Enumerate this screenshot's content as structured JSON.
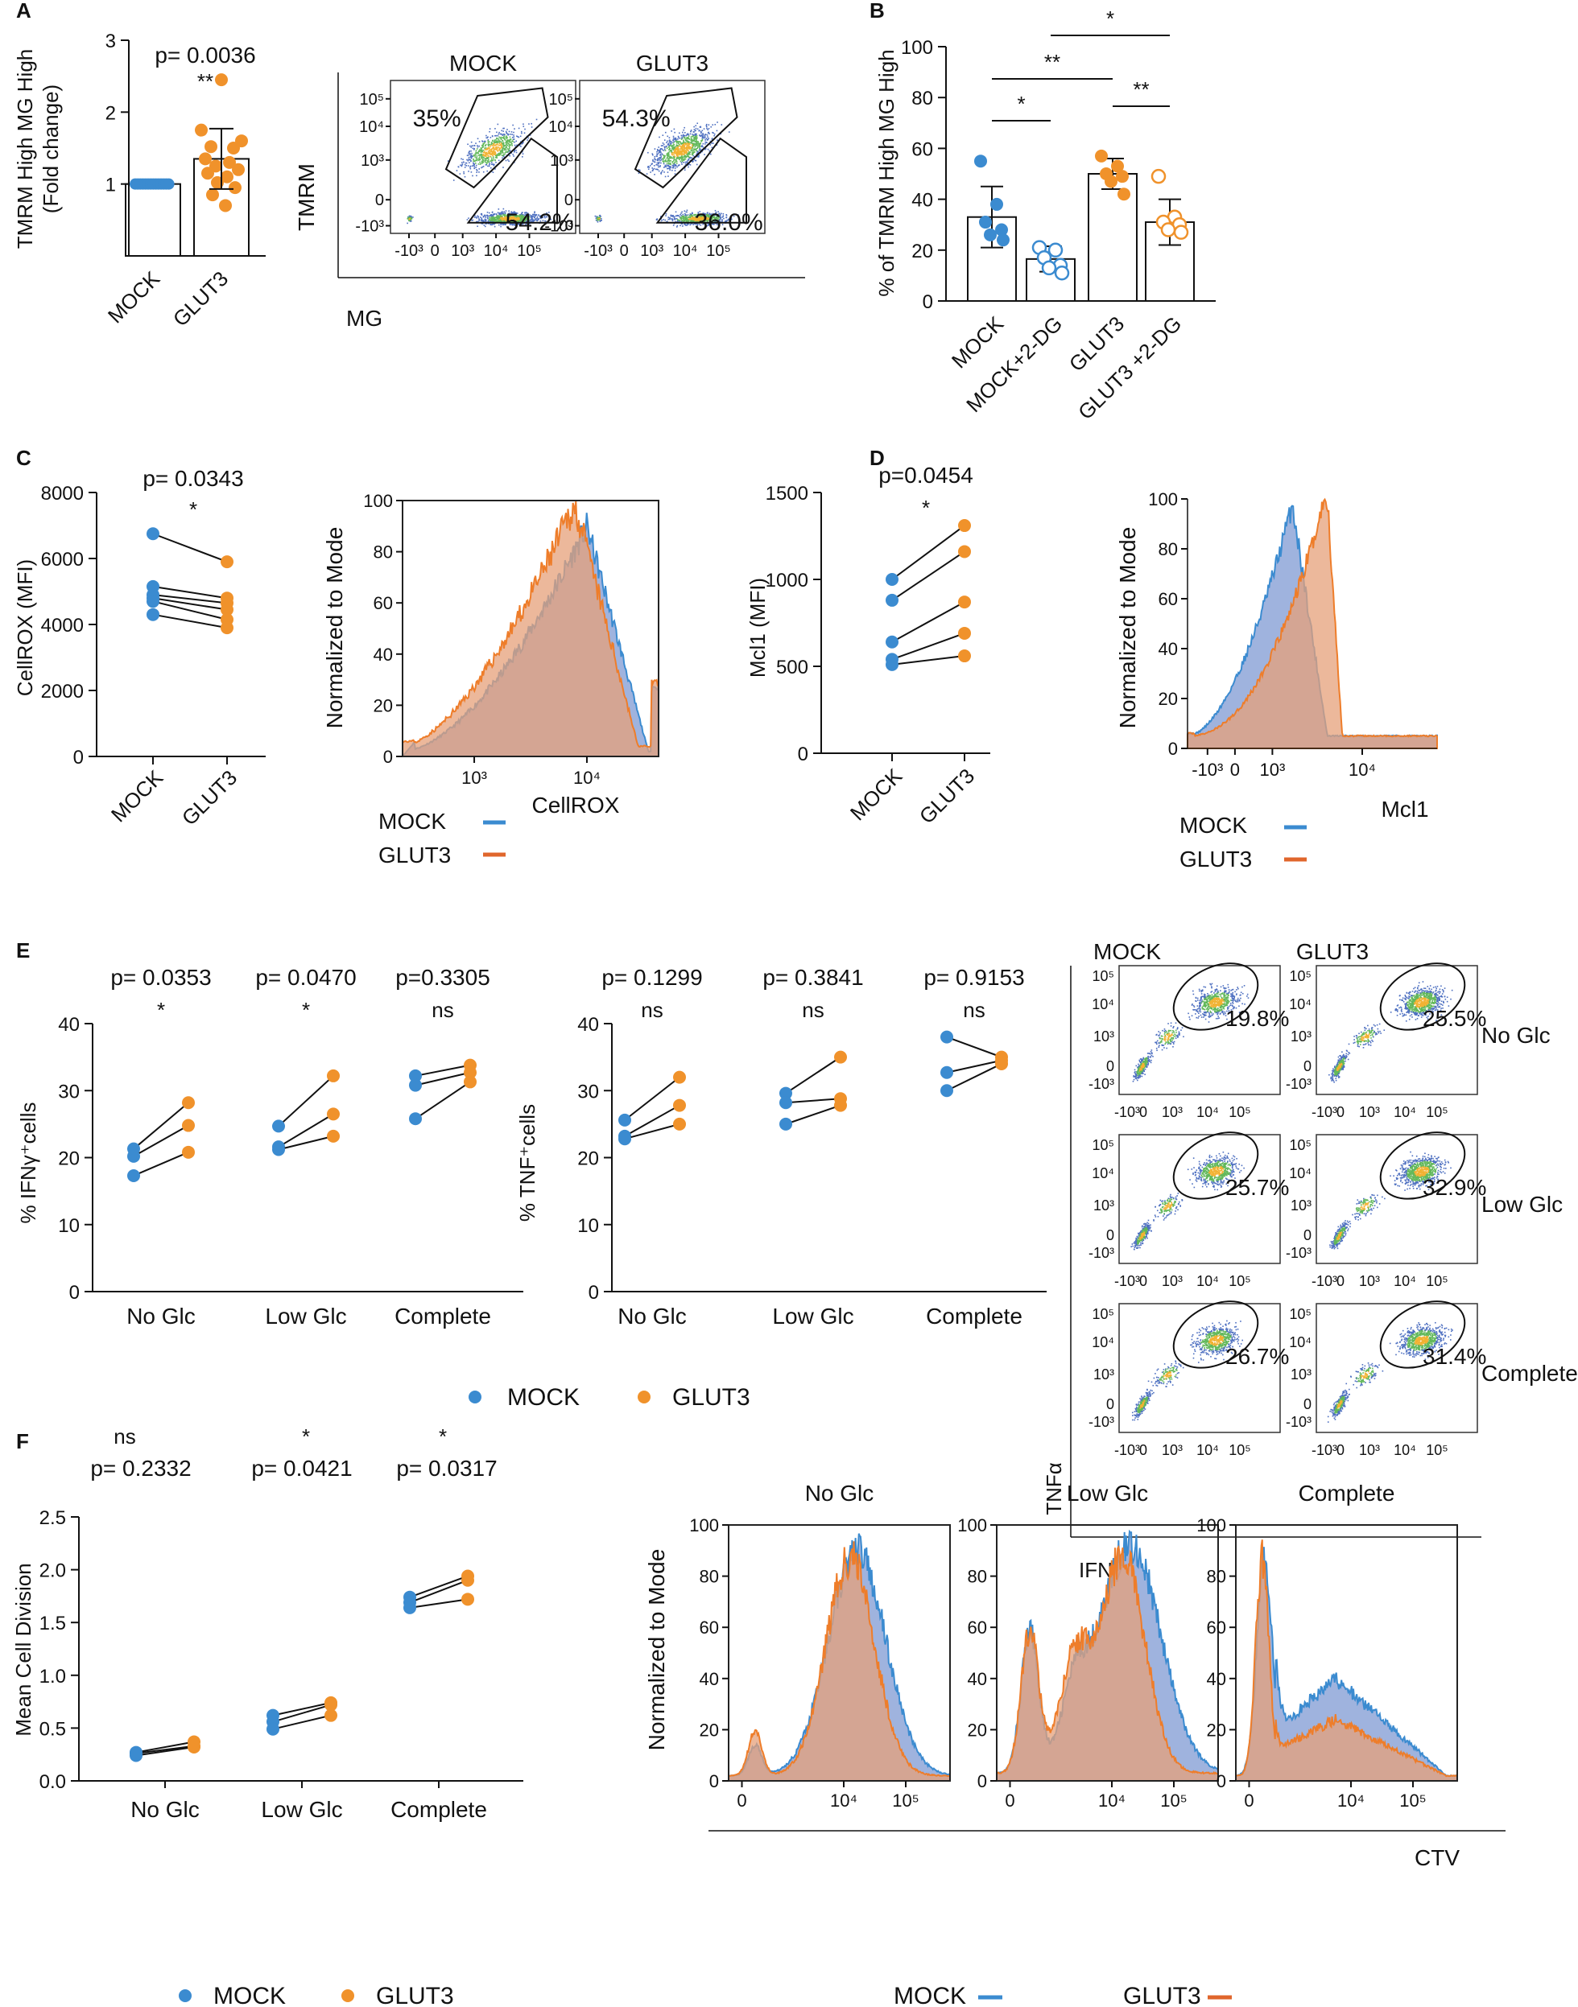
{
  "colors": {
    "mock": "#3b8bd0",
    "glut3": "#f0922b",
    "mock_fill": "#8ea6d8",
    "glut3_fill": "#e6a07a",
    "overlap": "#c19a8a",
    "glut3_legend": "#e0662c"
  },
  "panels": {
    "A": {
      "label": "A"
    },
    "B": {
      "label": "B"
    },
    "C": {
      "label": "C"
    },
    "D": {
      "label": "D"
    },
    "E": {
      "label": "E"
    },
    "F": {
      "label": "F"
    }
  },
  "chart_data": [
    {
      "id": "A-bar",
      "type": "bar",
      "panel": "A",
      "ylabel_lines": [
        "TMRM High MG High",
        "(Fold change)"
      ],
      "categories": [
        "MOCK",
        "GLUT3"
      ],
      "values": [
        1.0,
        1.35
      ],
      "errors": [
        0,
        0.42
      ],
      "ylim": [
        0,
        3
      ],
      "yticks": [
        "1",
        "2",
        "3"
      ],
      "pvalue": "p=  0.0036",
      "sig": "**",
      "points": {
        "MOCK": [
          1,
          1,
          1,
          1,
          1,
          1,
          1,
          1,
          1,
          1,
          1,
          1,
          1,
          1
        ],
        "GLUT3": [
          2.45,
          1.75,
          1.6,
          1.52,
          1.5,
          1.35,
          1.3,
          1.25,
          1.2,
          1.15,
          1.1,
          1.02,
          0.95,
          0.85,
          0.7
        ]
      }
    },
    {
      "id": "A-flow",
      "type": "scatter",
      "panel": "A",
      "ylabel": "TMRM",
      "xlabel": "MG",
      "plots": [
        {
          "title": "MOCK",
          "upper": "35%",
          "lower": "54.2%"
        },
        {
          "title": "GLUT3",
          "upper": "54.3%",
          "lower": "36.0%"
        }
      ],
      "xticks": [
        "-10³",
        "0",
        "10³",
        "10⁴",
        "10⁵"
      ],
      "yticks": [
        "10⁵",
        "10⁴",
        "10³",
        "0",
        "-10³"
      ]
    },
    {
      "id": "B-bar",
      "type": "bar",
      "panel": "B",
      "ylabel": "% of TMRM High MG High",
      "categories": [
        "MOCK",
        "MOCK+2-DG",
        "GLUT3",
        "GLUT3 +2-DG"
      ],
      "values": [
        33,
        16.5,
        50,
        31
      ],
      "errors": [
        12,
        5,
        6,
        9
      ],
      "ylim": [
        0,
        100
      ],
      "yticks": [
        "0",
        "20",
        "40",
        "60",
        "80",
        "100"
      ],
      "points": [
        [
          55,
          38,
          31,
          28,
          26,
          24
        ],
        [
          21,
          20,
          17,
          14,
          13,
          11
        ],
        [
          57,
          53,
          50,
          49,
          47,
          42
        ],
        [
          49,
          33,
          31,
          30,
          28,
          27
        ]
      ],
      "significance": [
        {
          "from": "MOCK",
          "to": "MOCK+2-DG",
          "label": "*"
        },
        {
          "from": "MOCK",
          "to": "GLUT3",
          "label": "**"
        },
        {
          "from": "MOCK+2-DG",
          "to": "GLUT3 +2-DG",
          "label": "*"
        },
        {
          "from": "GLUT3",
          "to": "GLUT3 +2-DG",
          "label": "**"
        }
      ]
    },
    {
      "id": "C-paired",
      "type": "scatter",
      "panel": "C",
      "ylabel": "CellROX  (MFI)",
      "categories": [
        "MOCK",
        "GLUT3"
      ],
      "pairs": [
        [
          6750,
          5900
        ],
        [
          5150,
          4800
        ],
        [
          4900,
          4650
        ],
        [
          4800,
          4450
        ],
        [
          4700,
          4150
        ],
        [
          4300,
          3900
        ]
      ],
      "ylim": [
        0,
        8000
      ],
      "yticks": [
        "0",
        "2000",
        "4000",
        "6000",
        "8000"
      ],
      "pvalue": "p=  0.0343",
      "sig": "*"
    },
    {
      "id": "C-hist",
      "type": "area",
      "panel": "C",
      "ylabel": "Normalized to Mode",
      "xlabel": "CellROX",
      "yticks": [
        "0",
        "20",
        "40",
        "60",
        "80",
        "100"
      ],
      "xticks": [
        "10³",
        "10⁴"
      ],
      "legend": [
        "MOCK",
        "GLUT3"
      ]
    },
    {
      "id": "D-paired",
      "type": "scatter",
      "panel": "D",
      "ylabel": "Mcl1 (MFI)",
      "categories": [
        "MOCK",
        "GLUT3"
      ],
      "pairs": [
        [
          1000,
          1310
        ],
        [
          880,
          1160
        ],
        [
          640,
          870
        ],
        [
          540,
          690
        ],
        [
          510,
          560
        ]
      ],
      "ylim": [
        0,
        1500
      ],
      "yticks": [
        "0",
        "500",
        "1000",
        "1500"
      ],
      "pvalue": "p=0.0454",
      "sig": "*"
    },
    {
      "id": "D-hist",
      "type": "area",
      "panel": "D",
      "ylabel": "Normalized to Mode",
      "xlabel": "Mcl1",
      "yticks": [
        "0",
        "20",
        "40",
        "60",
        "80",
        "100"
      ],
      "xticks": [
        "-10³",
        "0",
        "10³",
        "10⁴"
      ],
      "legend": [
        "MOCK",
        "GLUT3"
      ]
    },
    {
      "id": "E-ifng",
      "type": "scatter",
      "panel": "E",
      "ylabel": "% IFNγ⁺cells",
      "categories": [
        "No Glc",
        "Low Glc",
        "Complete"
      ],
      "pairs": [
        [
          [
            21.3,
            28.2
          ],
          [
            20.2,
            24.8
          ],
          [
            17.3,
            20.8
          ]
        ],
        [
          [
            24.7,
            32.2
          ],
          [
            21.6,
            26.5
          ],
          [
            21.2,
            23.2
          ]
        ],
        [
          [
            32.2,
            33.8
          ],
          [
            30.8,
            32.7
          ],
          [
            25.8,
            31.3
          ]
        ]
      ],
      "ylim": [
        0,
        40
      ],
      "yticks": [
        "0",
        "10",
        "20",
        "30",
        "40"
      ],
      "pvalues": [
        "p= 0.0353",
        "p= 0.0470",
        "p=0.3305"
      ],
      "sigs": [
        "*",
        "*",
        "ns"
      ],
      "legend": [
        "MOCK",
        "GLUT3"
      ]
    },
    {
      "id": "E-tnf",
      "type": "scatter",
      "panel": "E",
      "ylabel": "% TNF⁺cells",
      "categories": [
        "No Glc",
        "Low Glc",
        "Complete"
      ],
      "pairs": [
        [
          [
            25.6,
            32.0
          ],
          [
            23.2,
            27.8
          ],
          [
            22.8,
            25.0
          ]
        ],
        [
          [
            29.6,
            35.0
          ],
          [
            28.2,
            28.8
          ],
          [
            25.0,
            27.8
          ]
        ],
        [
          [
            38.0,
            35.0
          ],
          [
            32.7,
            34.5
          ],
          [
            30.0,
            34.0
          ]
        ]
      ],
      "ylim": [
        0,
        40
      ],
      "yticks": [
        "0",
        "10",
        "20",
        "30",
        "40"
      ],
      "pvalues": [
        "p= 0.1299",
        "p= 0.3841",
        "p= 0.9153"
      ],
      "sigs": [
        "ns",
        "ns",
        "ns"
      ]
    },
    {
      "id": "E-flow",
      "type": "scatter",
      "panel": "E",
      "ylabel": "TNFα",
      "xlabel": "IFNγ",
      "columns": [
        "MOCK",
        "GLUT3"
      ],
      "rows": [
        "No Glc",
        "Low Glc",
        "Complete"
      ],
      "percents": [
        [
          "19.8%",
          "25.5%"
        ],
        [
          "25.7%",
          "32.9%"
        ],
        [
          "26.7%",
          "31.4%"
        ]
      ],
      "xticks": [
        "-10³",
        "0",
        "10³",
        "10⁴",
        "10⁵"
      ],
      "yticks": [
        "10⁵",
        "10⁴",
        "10³",
        "0",
        "-10³"
      ]
    },
    {
      "id": "F-paired",
      "type": "scatter",
      "panel": "F",
      "ylabel": "Mean Cell Division",
      "categories": [
        "No Glc",
        "Low Glc",
        "Complete"
      ],
      "pairs": [
        [
          [
            0.27,
            0.37
          ],
          [
            0.26,
            0.33
          ],
          [
            0.24,
            0.32
          ]
        ],
        [
          [
            0.62,
            0.74
          ],
          [
            0.56,
            0.72
          ],
          [
            0.49,
            0.62
          ]
        ],
        [
          [
            1.74,
            1.94
          ],
          [
            1.69,
            1.9
          ],
          [
            1.64,
            1.72
          ]
        ]
      ],
      "ylim": [
        0,
        2.5
      ],
      "yticks": [
        "0.0",
        "0.5",
        "1.0",
        "1.5",
        "2.0",
        "2.5"
      ],
      "pvalues": [
        "p= 0.2332",
        "p= 0.0421",
        "p= 0.0317"
      ],
      "sigs": [
        "ns",
        "*",
        "*"
      ],
      "legend": [
        "MOCK",
        "GLUT3"
      ]
    },
    {
      "id": "F-hist",
      "type": "area",
      "panel": "F",
      "ylabel": "Normalized to Mode",
      "xlabel": "CTV",
      "titles": [
        "No Glc",
        "Low Glc",
        "Complete"
      ],
      "yticks": [
        "0",
        "20",
        "40",
        "60",
        "80",
        "100"
      ],
      "xticks": [
        "0",
        "10⁴",
        "10⁵"
      ],
      "legend": [
        "MOCK",
        "GLUT3"
      ]
    }
  ]
}
